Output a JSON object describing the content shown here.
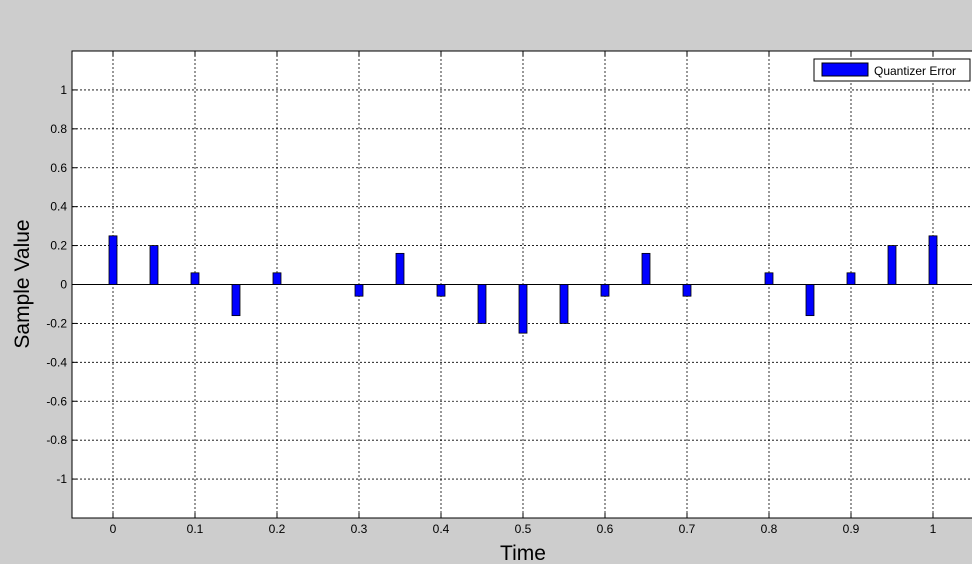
{
  "window": {
    "background_color": "#cdcdcd"
  },
  "chart_data": {
    "type": "bar",
    "xlabel": "Time",
    "ylabel": "Sample Value",
    "xlim": [
      -0.05,
      1.05
    ],
    "ylim": [
      -1.2,
      1.2
    ],
    "xticks": [
      0,
      0.1,
      0.2,
      0.3,
      0.4,
      0.5,
      0.6,
      0.7,
      0.8,
      0.9,
      1
    ],
    "xtick_labels": [
      "0",
      "0.1",
      "0.2",
      "0.3",
      "0.4",
      "0.5",
      "0.6",
      "0.7",
      "0.8",
      "0.9",
      "1"
    ],
    "yticks": [
      1,
      0.8,
      0.6,
      0.4,
      0.2,
      0,
      -0.2,
      -0.4,
      -0.6,
      -0.8,
      -1
    ],
    "ytick_labels": [
      "1",
      "0.8",
      "0.6",
      "0.4",
      "0.2",
      "0",
      "-0.2",
      "-0.4",
      "-0.6",
      "-0.8",
      "-1"
    ],
    "grid": true,
    "grid_style": "dotted",
    "legend": {
      "position": "top-right",
      "entries": [
        "Quantizer Error"
      ]
    },
    "series": [
      {
        "name": "Quantizer Error",
        "color": "#0000ff",
        "x": [
          0,
          0.05,
          0.1,
          0.15,
          0.2,
          0.25,
          0.3,
          0.35,
          0.4,
          0.45,
          0.5,
          0.55,
          0.6,
          0.65,
          0.7,
          0.75,
          0.8,
          0.85,
          0.9,
          0.95,
          1
        ],
        "values": [
          0.25,
          0.2,
          0.06,
          -0.16,
          0.06,
          0,
          -0.06,
          0.16,
          -0.06,
          -0.2,
          -0.25,
          -0.2,
          -0.06,
          0.16,
          -0.06,
          0,
          0.06,
          -0.16,
          0.06,
          0.2,
          0.25
        ]
      }
    ]
  }
}
